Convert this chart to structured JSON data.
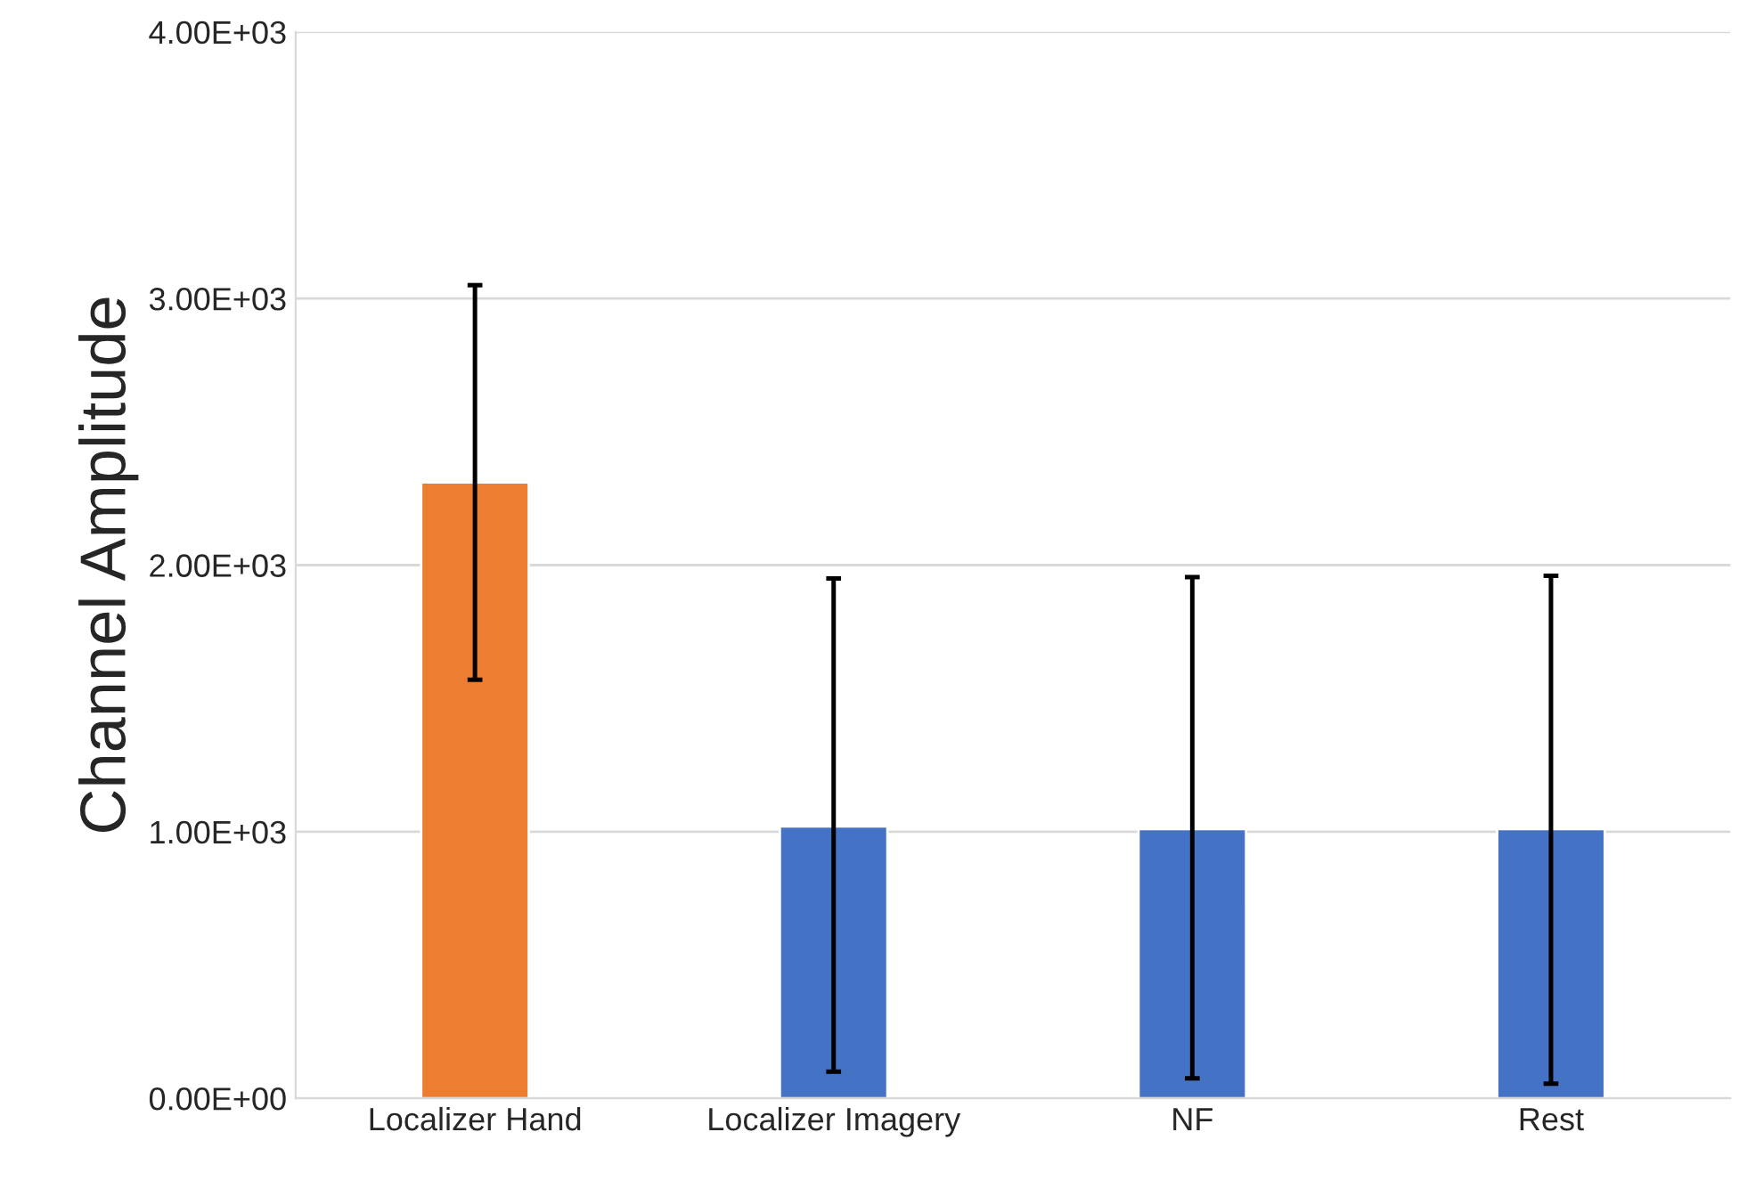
{
  "chart_data": {
    "type": "bar",
    "ylabel": "Channel Amplitude",
    "categories": [
      "Localizer Hand",
      "Localizer Imagery",
      "NF",
      "Rest"
    ],
    "values": [
      2310,
      1020,
      1010,
      1010
    ],
    "colors": [
      "#ed7d31",
      "#4472c4",
      "#4472c4",
      "#4472c4"
    ],
    "errors": [
      [
        1570,
        3050
      ],
      [
        100,
        1950
      ],
      [
        75,
        1955
      ],
      [
        55,
        1960
      ]
    ],
    "ylim": [
      0,
      4000
    ],
    "yticks": [
      {
        "value": 0,
        "label": "0.00E+00"
      },
      {
        "value": 1000,
        "label": "1.00E+03"
      },
      {
        "value": 2000,
        "label": "2.00E+03"
      },
      {
        "value": 3000,
        "label": "3.00E+03"
      },
      {
        "value": 4000,
        "label": "4.00E+03"
      }
    ],
    "grid": "y"
  }
}
